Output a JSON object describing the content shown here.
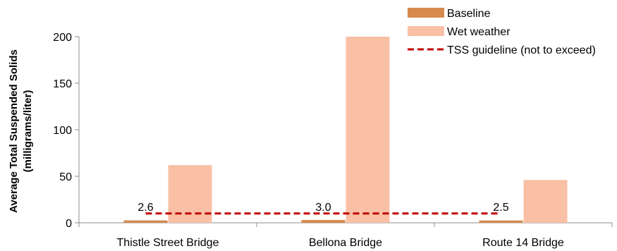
{
  "chart_data": {
    "type": "bar",
    "categories": [
      "Thistle Street Bridge",
      "Bellona Bridge",
      "Route 14 Bridge"
    ],
    "series": [
      {
        "name": "Baseline",
        "values": [
          2.6,
          3.0,
          2.5
        ],
        "color": "#d68a4e"
      },
      {
        "name": "Wet weather",
        "values": [
          62,
          200,
          46
        ],
        "color": "#f9c0a6"
      }
    ],
    "data_labels": [
      "2.6",
      "3.0",
      "2.5"
    ],
    "guideline": {
      "name": "TSS guideline (not to exceed)",
      "value": 10,
      "color": "#c00000",
      "style": "dashed"
    },
    "ylabel_line1": "Average Total Suspended Solids",
    "ylabel_line2": "(milligrams/liter)",
    "ylim": [
      0,
      200
    ],
    "yticks": [
      0,
      50,
      100,
      150,
      200
    ],
    "grid": false,
    "legend_position": "top-right"
  }
}
